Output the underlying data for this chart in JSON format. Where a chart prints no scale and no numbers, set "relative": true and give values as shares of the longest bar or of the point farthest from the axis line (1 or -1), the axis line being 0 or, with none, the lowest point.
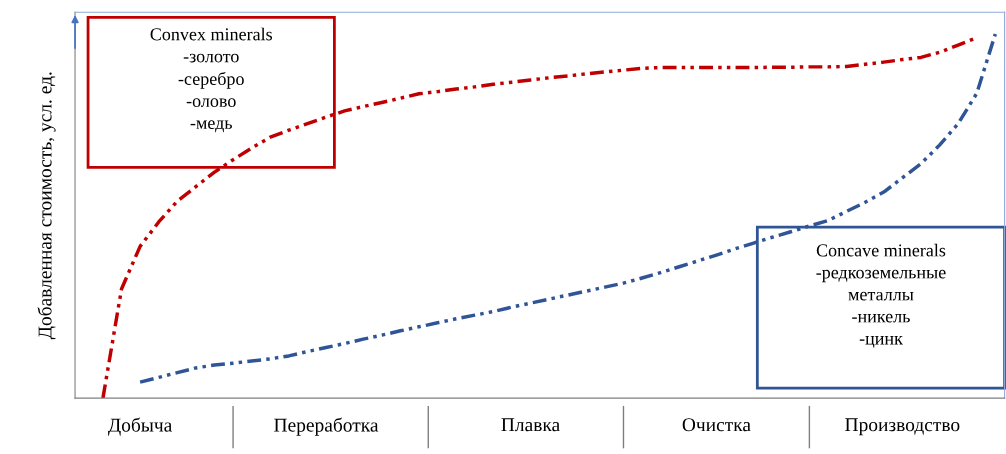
{
  "chart_data": {
    "type": "line",
    "relative": true,
    "ylabel": "Добавленная стоимость, усл. ед.",
    "categories": [
      null,
      null,
      null,
      "Добыча",
      null,
      null,
      null,
      null,
      null,
      null,
      null,
      null,
      null,
      "Переработка",
      null,
      null,
      null,
      null,
      null,
      null,
      null,
      null,
      null,
      null,
      "Плавка",
      null,
      null,
      null,
      null,
      null,
      null,
      null,
      null,
      null,
      "Очистка",
      null,
      null,
      null,
      null,
      null,
      null,
      null,
      null,
      null,
      "Производство",
      null,
      null,
      null,
      null,
      null
    ],
    "tick_labels": "x",
    "grid": false,
    "line_style": "dashed",
    "marker": "none",
    "series": [
      {
        "color": "#c00000",
        "values": [
          null,
          0,
          0.3,
          0.417,
          0.484,
          0.541,
          0.581,
          0.621,
          0.655,
          0.687,
          0.717,
          0.736,
          0.754,
          0.772,
          0.789,
          0.801,
          0.812,
          0.824,
          0.836,
          0.842,
          0.849,
          0.855,
          0.862,
          0.868,
          0.874,
          0.88,
          0.885,
          0.891,
          0.896,
          0.901,
          0.906,
          0.908,
          0.908,
          0.908,
          0.908,
          0.908,
          0.908,
          0.909,
          0.909,
          0.91,
          0.91,
          0.911,
          0.917,
          0.923,
          0.93,
          0.936,
          0.95,
          0.97,
          0.99,
          null
        ]
      },
      {
        "color": "#2f5597",
        "values": [
          null,
          null,
          null,
          0.044,
          0.057,
          0.07,
          0.083,
          0.091,
          0.096,
          0.102,
          0.108,
          0.116,
          0.128,
          0.139,
          0.15,
          0.162,
          0.173,
          0.185,
          0.196,
          0.207,
          0.218,
          0.228,
          0.238,
          0.25,
          0.261,
          0.272,
          0.283,
          0.294,
          0.305,
          0.316,
          0.33,
          0.345,
          0.361,
          0.377,
          0.393,
          0.41,
          0.426,
          0.442,
          0.457,
          0.473,
          0.488,
          0.513,
          0.538,
          0.566,
          0.605,
          0.644,
          0.695,
          0.754,
          0.837,
          1
        ]
      }
    ],
    "annotations": [
      "Convex minerals\n-золото\n-серебро\n-олово\n-медь",
      "Concave minerals\n-редкоземельные\nметаллы\n-никель\n-цинк"
    ]
  }
}
